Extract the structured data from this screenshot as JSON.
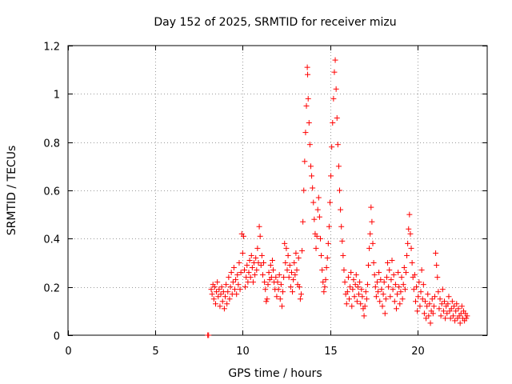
{
  "chart_data": {
    "type": "scatter",
    "title": "Day 152 of 2025, SRMTID for receiver mizu",
    "xlabel": "GPS time / hours",
    "ylabel": "SRMTID / TECUs",
    "xlim": [
      0,
      24
    ],
    "ylim": [
      0,
      1.2
    ],
    "x_ticks": [
      0,
      5,
      10,
      15,
      20
    ],
    "x_tick_labels": [
      "0",
      "5",
      "10",
      "15",
      "20"
    ],
    "y_ticks": [
      0,
      0.2,
      0.4,
      0.6,
      0.8,
      1.0,
      1.2
    ],
    "y_tick_labels": [
      "0",
      "0.2",
      "0.4",
      "0.6",
      "0.8",
      "1",
      "1.2"
    ],
    "grid": true,
    "marker": "plus",
    "color": "#ff0000",
    "series": [
      {
        "name": "SRMTID",
        "points": [
          [
            8.0,
            0.0
          ],
          [
            8.05,
            0.0
          ],
          [
            8.2,
            0.19
          ],
          [
            8.25,
            0.17
          ],
          [
            8.3,
            0.21
          ],
          [
            8.35,
            0.15
          ],
          [
            8.4,
            0.2
          ],
          [
            8.45,
            0.13
          ],
          [
            8.5,
            0.18
          ],
          [
            8.55,
            0.22
          ],
          [
            8.6,
            0.16
          ],
          [
            8.65,
            0.19
          ],
          [
            8.7,
            0.12
          ],
          [
            8.75,
            0.17
          ],
          [
            8.8,
            0.2
          ],
          [
            8.85,
            0.14
          ],
          [
            8.9,
            0.18
          ],
          [
            8.95,
            0.11
          ],
          [
            9.0,
            0.16
          ],
          [
            9.05,
            0.21
          ],
          [
            9.1,
            0.13
          ],
          [
            9.15,
            0.18
          ],
          [
            9.2,
            0.24
          ],
          [
            9.25,
            0.15
          ],
          [
            9.3,
            0.2
          ],
          [
            9.35,
            0.26
          ],
          [
            9.4,
            0.17
          ],
          [
            9.45,
            0.22
          ],
          [
            9.5,
            0.28
          ],
          [
            9.55,
            0.19
          ],
          [
            9.6,
            0.23
          ],
          [
            9.65,
            0.17
          ],
          [
            9.7,
            0.25
          ],
          [
            9.75,
            0.21
          ],
          [
            9.8,
            0.3
          ],
          [
            9.85,
            0.19
          ],
          [
            9.9,
            0.26
          ],
          [
            9.95,
            0.42
          ],
          [
            10.0,
            0.34
          ],
          [
            10.05,
            0.41
          ],
          [
            10.1,
            0.27
          ],
          [
            10.15,
            0.2
          ],
          [
            10.2,
            0.24
          ],
          [
            10.25,
            0.29
          ],
          [
            10.3,
            0.22
          ],
          [
            10.35,
            0.26
          ],
          [
            10.4,
            0.31
          ],
          [
            10.45,
            0.24
          ],
          [
            10.5,
            0.33
          ],
          [
            10.55,
            0.28
          ],
          [
            10.6,
            0.22
          ],
          [
            10.65,
            0.3
          ],
          [
            10.7,
            0.25
          ],
          [
            10.75,
            0.32
          ],
          [
            10.8,
            0.27
          ],
          [
            10.85,
            0.36
          ],
          [
            10.9,
            0.3
          ],
          [
            10.95,
            0.45
          ],
          [
            11.0,
            0.41
          ],
          [
            11.05,
            0.29
          ],
          [
            11.1,
            0.33
          ],
          [
            11.15,
            0.25
          ],
          [
            11.2,
            0.3
          ],
          [
            11.25,
            0.22
          ],
          [
            11.3,
            0.19
          ],
          [
            11.35,
            0.14
          ],
          [
            11.4,
            0.15
          ],
          [
            11.45,
            0.21
          ],
          [
            11.5,
            0.26
          ],
          [
            11.55,
            0.23
          ],
          [
            11.6,
            0.29
          ],
          [
            11.65,
            0.24
          ],
          [
            11.7,
            0.31
          ],
          [
            11.75,
            0.27
          ],
          [
            11.8,
            0.22
          ],
          [
            11.85,
            0.19
          ],
          [
            11.9,
            0.24
          ],
          [
            11.95,
            0.16
          ],
          [
            12.0,
            0.22
          ],
          [
            12.05,
            0.19
          ],
          [
            12.1,
            0.25
          ],
          [
            12.15,
            0.15
          ],
          [
            12.2,
            0.21
          ],
          [
            12.25,
            0.12
          ],
          [
            12.3,
            0.18
          ],
          [
            12.35,
            0.24
          ],
          [
            12.4,
            0.38
          ],
          [
            12.45,
            0.3
          ],
          [
            12.5,
            0.36
          ],
          [
            12.55,
            0.27
          ],
          [
            12.6,
            0.33
          ],
          [
            12.65,
            0.24
          ],
          [
            12.7,
            0.29
          ],
          [
            12.75,
            0.2
          ],
          [
            12.8,
            0.26
          ],
          [
            12.85,
            0.18
          ],
          [
            12.9,
            0.23
          ],
          [
            12.95,
            0.3
          ],
          [
            13.0,
            0.25
          ],
          [
            13.05,
            0.34
          ],
          [
            13.1,
            0.27
          ],
          [
            13.15,
            0.21
          ],
          [
            13.2,
            0.32
          ],
          [
            13.25,
            0.2
          ],
          [
            13.3,
            0.15
          ],
          [
            13.35,
            0.17
          ],
          [
            13.4,
            0.35
          ],
          [
            13.45,
            0.47
          ],
          [
            13.5,
            0.6
          ],
          [
            13.55,
            0.72
          ],
          [
            13.6,
            0.84
          ],
          [
            13.65,
            0.95
          ],
          [
            13.7,
            1.11
          ],
          [
            13.72,
            1.08
          ],
          [
            13.75,
            0.98
          ],
          [
            13.8,
            0.88
          ],
          [
            13.85,
            0.79
          ],
          [
            13.9,
            0.7
          ],
          [
            13.95,
            0.66
          ],
          [
            14.0,
            0.61
          ],
          [
            14.05,
            0.55
          ],
          [
            14.1,
            0.48
          ],
          [
            14.15,
            0.42
          ],
          [
            14.2,
            0.36
          ],
          [
            14.25,
            0.41
          ],
          [
            14.3,
            0.52
          ],
          [
            14.35,
            0.57
          ],
          [
            14.4,
            0.49
          ],
          [
            14.45,
            0.4
          ],
          [
            14.5,
            0.33
          ],
          [
            14.55,
            0.27
          ],
          [
            14.6,
            0.22
          ],
          [
            14.65,
            0.18
          ],
          [
            14.7,
            0.2
          ],
          [
            14.75,
            0.23
          ],
          [
            14.8,
            0.28
          ],
          [
            14.85,
            0.32
          ],
          [
            14.9,
            0.38
          ],
          [
            14.95,
            0.45
          ],
          [
            15.0,
            0.55
          ],
          [
            15.05,
            0.66
          ],
          [
            15.1,
            0.78
          ],
          [
            15.15,
            0.88
          ],
          [
            15.2,
            0.98
          ],
          [
            15.25,
            1.09
          ],
          [
            15.3,
            1.14
          ],
          [
            15.35,
            1.02
          ],
          [
            15.4,
            0.9
          ],
          [
            15.45,
            0.79
          ],
          [
            15.5,
            0.7
          ],
          [
            15.55,
            0.6
          ],
          [
            15.6,
            0.52
          ],
          [
            15.65,
            0.45
          ],
          [
            15.7,
            0.39
          ],
          [
            15.75,
            0.33
          ],
          [
            15.8,
            0.27
          ],
          [
            15.85,
            0.22
          ],
          [
            15.9,
            0.17
          ],
          [
            15.95,
            0.13
          ],
          [
            16.0,
            0.18
          ],
          [
            16.05,
            0.24
          ],
          [
            16.1,
            0.15
          ],
          [
            16.15,
            0.2
          ],
          [
            16.2,
            0.26
          ],
          [
            16.25,
            0.12
          ],
          [
            16.3,
            0.19
          ],
          [
            16.35,
            0.23
          ],
          [
            16.4,
            0.16
          ],
          [
            16.45,
            0.21
          ],
          [
            16.5,
            0.25
          ],
          [
            16.55,
            0.14
          ],
          [
            16.6,
            0.2
          ],
          [
            16.65,
            0.17
          ],
          [
            16.7,
            0.22
          ],
          [
            16.75,
            0.13
          ],
          [
            16.8,
            0.19
          ],
          [
            16.85,
            0.16
          ],
          [
            16.9,
            0.11
          ],
          [
            16.95,
            0.08
          ],
          [
            17.0,
            0.12
          ],
          [
            17.05,
            0.18
          ],
          [
            17.1,
            0.15
          ],
          [
            17.15,
            0.21
          ],
          [
            17.2,
            0.29
          ],
          [
            17.25,
            0.36
          ],
          [
            17.3,
            0.42
          ],
          [
            17.35,
            0.53
          ],
          [
            17.4,
            0.47
          ],
          [
            17.45,
            0.38
          ],
          [
            17.5,
            0.3
          ],
          [
            17.55,
            0.25
          ],
          [
            17.6,
            0.2
          ],
          [
            17.65,
            0.16
          ],
          [
            17.7,
            0.22
          ],
          [
            17.75,
            0.18
          ],
          [
            17.8,
            0.26
          ],
          [
            17.85,
            0.14
          ],
          [
            17.9,
            0.23
          ],
          [
            17.95,
            0.19
          ],
          [
            18.0,
            0.12
          ],
          [
            18.05,
            0.17
          ],
          [
            18.1,
            0.22
          ],
          [
            18.15,
            0.09
          ],
          [
            18.2,
            0.15
          ],
          [
            18.25,
            0.24
          ],
          [
            18.3,
            0.3
          ],
          [
            18.35,
            0.2
          ],
          [
            18.4,
            0.27
          ],
          [
            18.45,
            0.16
          ],
          [
            18.5,
            0.23
          ],
          [
            18.55,
            0.31
          ],
          [
            18.6,
            0.19
          ],
          [
            18.65,
            0.25
          ],
          [
            18.7,
            0.14
          ],
          [
            18.75,
            0.21
          ],
          [
            18.8,
            0.11
          ],
          [
            18.85,
            0.17
          ],
          [
            18.9,
            0.26
          ],
          [
            18.95,
            0.2
          ],
          [
            19.0,
            0.13
          ],
          [
            19.05,
            0.18
          ],
          [
            19.1,
            0.24
          ],
          [
            19.15,
            0.15
          ],
          [
            19.2,
            0.21
          ],
          [
            19.25,
            0.28
          ],
          [
            19.3,
            0.19
          ],
          [
            19.35,
            0.26
          ],
          [
            19.4,
            0.33
          ],
          [
            19.45,
            0.38
          ],
          [
            19.5,
            0.44
          ],
          [
            19.55,
            0.5
          ],
          [
            19.6,
            0.42
          ],
          [
            19.65,
            0.36
          ],
          [
            19.7,
            0.3
          ],
          [
            19.75,
            0.24
          ],
          [
            19.8,
            0.19
          ],
          [
            19.85,
            0.25
          ],
          [
            19.9,
            0.14
          ],
          [
            19.95,
            0.2
          ],
          [
            20.0,
            0.1
          ],
          [
            20.05,
            0.16
          ],
          [
            20.1,
            0.22
          ],
          [
            20.15,
            0.12
          ],
          [
            20.2,
            0.18
          ],
          [
            20.25,
            0.27
          ],
          [
            20.3,
            0.15
          ],
          [
            20.35,
            0.21
          ],
          [
            20.4,
            0.09
          ],
          [
            20.45,
            0.14
          ],
          [
            20.5,
            0.07
          ],
          [
            20.55,
            0.12
          ],
          [
            20.6,
            0.17
          ],
          [
            20.65,
            0.08
          ],
          [
            20.7,
            0.13
          ],
          [
            20.75,
            0.05
          ],
          [
            20.8,
            0.1
          ],
          [
            20.85,
            0.15
          ],
          [
            20.9,
            0.09
          ],
          [
            20.95,
            0.12
          ],
          [
            21.0,
            0.16
          ],
          [
            21.05,
            0.34
          ],
          [
            21.1,
            0.29
          ],
          [
            21.15,
            0.24
          ],
          [
            21.2,
            0.18
          ],
          [
            21.25,
            0.11
          ],
          [
            21.3,
            0.15
          ],
          [
            21.35,
            0.08
          ],
          [
            21.4,
            0.13
          ],
          [
            21.45,
            0.19
          ],
          [
            21.5,
            0.1
          ],
          [
            21.55,
            0.14
          ],
          [
            21.6,
            0.07
          ],
          [
            21.65,
            0.12
          ],
          [
            21.7,
            0.09
          ],
          [
            21.75,
            0.13
          ],
          [
            21.8,
            0.16
          ],
          [
            21.85,
            0.1
          ],
          [
            21.9,
            0.07
          ],
          [
            21.95,
            0.11
          ],
          [
            22.0,
            0.14
          ],
          [
            22.05,
            0.08
          ],
          [
            22.1,
            0.12
          ],
          [
            22.15,
            0.06
          ],
          [
            22.2,
            0.1
          ],
          [
            22.25,
            0.13
          ],
          [
            22.3,
            0.07
          ],
          [
            22.35,
            0.11
          ],
          [
            22.4,
            0.08
          ],
          [
            22.45,
            0.05
          ],
          [
            22.5,
            0.09
          ],
          [
            22.55,
            0.12
          ],
          [
            22.6,
            0.07
          ],
          [
            22.65,
            0.1
          ],
          [
            22.7,
            0.06
          ],
          [
            22.75,
            0.09
          ],
          [
            22.8,
            0.07
          ],
          [
            22.85,
            0.08
          ]
        ]
      }
    ]
  }
}
